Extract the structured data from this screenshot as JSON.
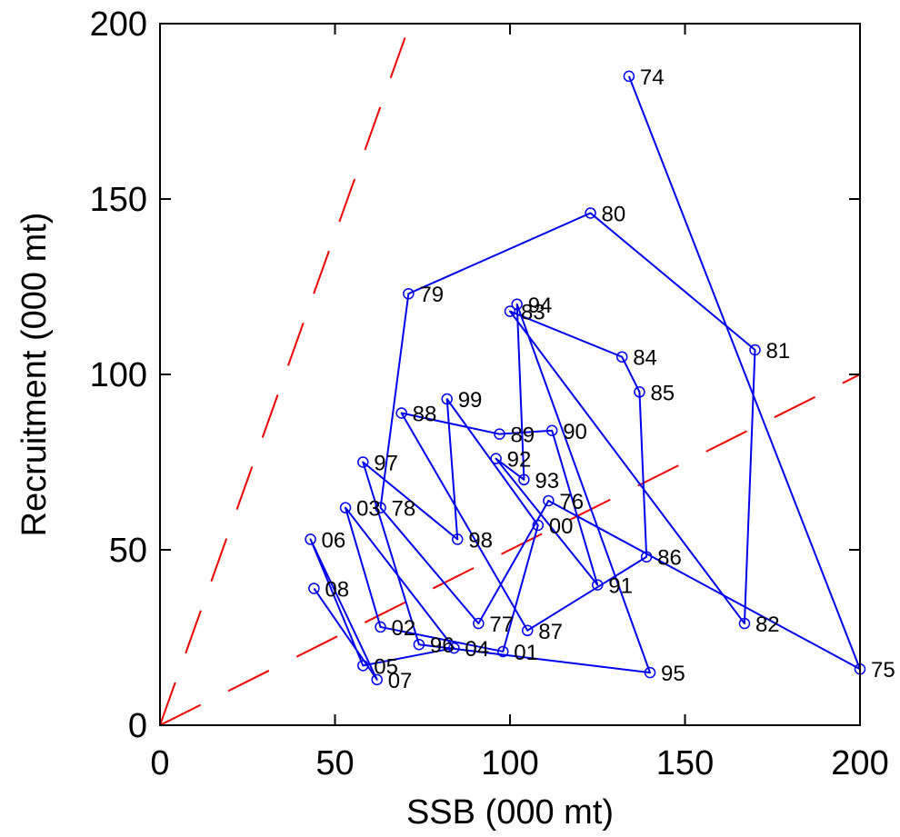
{
  "chart_data": {
    "type": "scatter",
    "xlabel": "SSB (000 mt)",
    "ylabel": "Recruitment  (000 mt)",
    "xlim": [
      0,
      200
    ],
    "ylim": [
      0,
      200
    ],
    "xticks": [
      "0",
      "50",
      "100",
      "150",
      "200"
    ],
    "yticks": [
      "0",
      "50",
      "100",
      "150",
      "200"
    ],
    "grid": false,
    "series_color": "#0000ee",
    "reference_line_color": "#ee0000",
    "reference_lines": [
      {
        "style": "dashed",
        "points": [
          [
            0,
            0
          ],
          [
            70,
            196
          ]
        ]
      },
      {
        "style": "dashed",
        "points": [
          [
            0,
            0
          ],
          [
            200,
            100
          ]
        ]
      }
    ],
    "points": [
      {
        "label": "74",
        "x": 134,
        "y": 185
      },
      {
        "label": "75",
        "x": 200,
        "y": 16
      },
      {
        "label": "76",
        "x": 111,
        "y": 64
      },
      {
        "label": "77",
        "x": 91,
        "y": 29
      },
      {
        "label": "78",
        "x": 63,
        "y": 62
      },
      {
        "label": "79",
        "x": 71,
        "y": 123
      },
      {
        "label": "80",
        "x": 123,
        "y": 146
      },
      {
        "label": "81",
        "x": 170,
        "y": 107
      },
      {
        "label": "82",
        "x": 167,
        "y": 29
      },
      {
        "label": "83",
        "x": 100,
        "y": 118
      },
      {
        "label": "84",
        "x": 132,
        "y": 105
      },
      {
        "label": "85",
        "x": 137,
        "y": 95
      },
      {
        "label": "86",
        "x": 139,
        "y": 48
      },
      {
        "label": "87",
        "x": 105,
        "y": 27
      },
      {
        "label": "88",
        "x": 69,
        "y": 89
      },
      {
        "label": "89",
        "x": 97,
        "y": 83
      },
      {
        "label": "90",
        "x": 112,
        "y": 84
      },
      {
        "label": "91",
        "x": 125,
        "y": 40
      },
      {
        "label": "92",
        "x": 96,
        "y": 76
      },
      {
        "label": "93",
        "x": 104,
        "y": 70
      },
      {
        "label": "94",
        "x": 102,
        "y": 120
      },
      {
        "label": "95",
        "x": 140,
        "y": 15
      },
      {
        "label": "96",
        "x": 74,
        "y": 23
      },
      {
        "label": "97",
        "x": 58,
        "y": 75
      },
      {
        "label": "98",
        "x": 85,
        "y": 53
      },
      {
        "label": "99",
        "x": 82,
        "y": 93
      },
      {
        "label": "00",
        "x": 108,
        "y": 57
      },
      {
        "label": "01",
        "x": 98,
        "y": 21
      },
      {
        "label": "02",
        "x": 63,
        "y": 28
      },
      {
        "label": "03",
        "x": 53,
        "y": 62
      },
      {
        "label": "04",
        "x": 84,
        "y": 22
      },
      {
        "label": "05",
        "x": 58,
        "y": 17
      },
      {
        "label": "06",
        "x": 43,
        "y": 53
      },
      {
        "label": "07",
        "x": 62,
        "y": 13
      },
      {
        "label": "08",
        "x": 44,
        "y": 39
      }
    ]
  }
}
